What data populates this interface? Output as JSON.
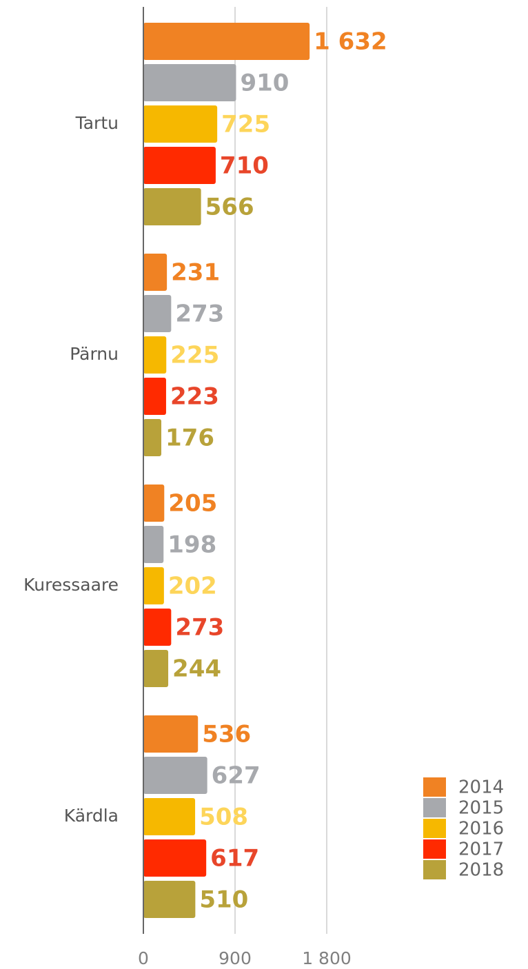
{
  "chart_data": {
    "type": "bar",
    "orientation": "horizontal",
    "categories": [
      "Tartu",
      "Pärnu",
      "Kuressaare",
      "Kärdla"
    ],
    "series": [
      {
        "name": "2014",
        "color": "#f08223",
        "label_color": "#f08223",
        "values": [
          1632,
          231,
          205,
          536
        ],
        "value_labels": [
          "1 632",
          "231",
          "205",
          "536"
        ]
      },
      {
        "name": "2015",
        "color": "#a7a9ad",
        "label_color": "#a7a9ad",
        "values": [
          910,
          273,
          198,
          627
        ]
      },
      {
        "name": "2016",
        "color": "#f6b800",
        "label_color": "#fdd55a",
        "values": [
          725,
          225,
          202,
          508
        ]
      },
      {
        "name": "2017",
        "color": "#ff2a00",
        "label_color": "#e8462a",
        "values": [
          710,
          223,
          273,
          617
        ]
      },
      {
        "name": "2018",
        "color": "#b8a23a",
        "label_color": "#b8a23a",
        "values": [
          566,
          176,
          244,
          510
        ]
      }
    ],
    "xlim": [
      0,
      1800
    ],
    "xticks": [
      0,
      900,
      {
        "value": 1800,
        "label": "1 800"
      }
    ],
    "grid": true,
    "legend": "lower right"
  }
}
